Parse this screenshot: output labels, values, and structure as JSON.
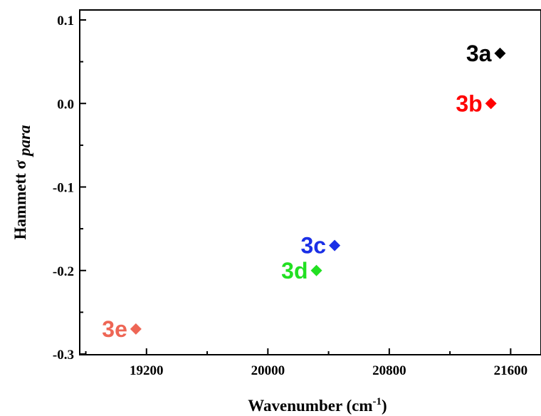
{
  "chart_data": {
    "type": "scatter",
    "xlabel": "Wavenumber (cm",
    "xlabel_sup": "-1",
    "xlabel_close": ")",
    "ylabel": "Hammett σ",
    "ylabel_sub": "para",
    "xlim": [
      18760,
      21800
    ],
    "ylim": [
      -0.3,
      0.1
    ],
    "xticks": [
      19200,
      20000,
      20800,
      21600
    ],
    "yticks": [
      -0.3,
      -0.2,
      -0.1,
      0.0,
      0.1
    ],
    "ytick_labels": [
      "-0.3",
      "-0.2",
      "-0.1",
      "0.0",
      "0.1"
    ],
    "xtick_labels": [
      "19200",
      "20000",
      "20800",
      "21600"
    ],
    "marker": "diamond",
    "points": [
      {
        "label": "3a",
        "x": 21530,
        "y": 0.06,
        "color": "#000000"
      },
      {
        "label": "3b",
        "x": 21470,
        "y": 0.0,
        "color": "#ff0000"
      },
      {
        "label": "3c",
        "x": 20440,
        "y": -0.17,
        "color": "#1a2fe6"
      },
      {
        "label": "3d",
        "x": 20320,
        "y": -0.2,
        "color": "#22e022"
      },
      {
        "label": "3e",
        "x": 19130,
        "y": -0.27,
        "color": "#ee6655"
      }
    ]
  }
}
